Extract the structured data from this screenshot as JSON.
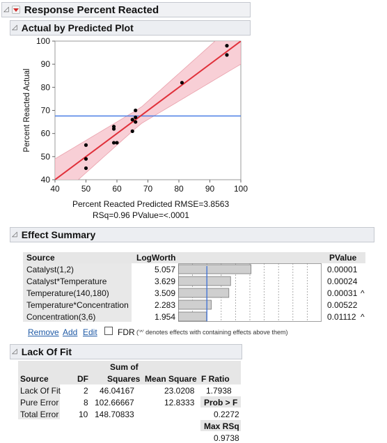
{
  "report": {
    "title": "Response Percent Reacted"
  },
  "actual_by_predicted": {
    "title": "Actual by Predicted Plot",
    "xlabel": "Percent Reacted Predicted RMSE=3.8563",
    "stats": "RSq=0.96 PValue=<.0001",
    "ylabel": "Percent Reacted Actual"
  },
  "chart_data": {
    "type": "scatter",
    "title": "Actual by Predicted Plot",
    "xlabel": "Percent Reacted Predicted RMSE=3.8563",
    "ylabel": "Percent Reacted Actual",
    "xlim": [
      40,
      100
    ],
    "ylim": [
      40,
      100
    ],
    "xticks": [
      40,
      50,
      60,
      70,
      80,
      90,
      100
    ],
    "yticks": [
      40,
      50,
      60,
      70,
      80,
      90,
      100
    ],
    "mean_line": 67.6,
    "fit_line": [
      [
        40,
        40
      ],
      [
        100,
        100
      ]
    ],
    "points": [
      [
        50,
        55
      ],
      [
        50,
        49
      ],
      [
        50,
        45
      ],
      [
        59,
        63
      ],
      [
        59,
        62
      ],
      [
        59,
        56
      ],
      [
        60,
        56
      ],
      [
        65,
        66
      ],
      [
        65,
        61
      ],
      [
        66,
        65
      ],
      [
        66,
        67
      ],
      [
        66,
        70
      ],
      [
        81,
        82
      ],
      [
        95.5,
        98
      ],
      [
        95.5,
        94
      ]
    ],
    "colors": {
      "fit": "#e0303a",
      "band": "#f7c7cf",
      "mean": "#4a7ee6",
      "points": "#000000"
    }
  },
  "effect_summary": {
    "title": "Effect Summary",
    "headers": {
      "source": "Source",
      "logworth": "LogWorth",
      "pvalue": "PValue"
    },
    "rows": [
      {
        "source": "Catalyst(1,2)",
        "logworth": "5.057",
        "pvalue": "0.00001",
        "mark": "",
        "value": 5.057
      },
      {
        "source": "Catalyst*Temperature",
        "logworth": "3.629",
        "pvalue": "0.00024",
        "mark": "",
        "value": 3.629
      },
      {
        "source": "Temperature(140,180)",
        "logworth": "3.509",
        "pvalue": "0.00031",
        "mark": "^",
        "value": 3.509
      },
      {
        "source": "Temperature*Concentration",
        "logworth": "2.283",
        "pvalue": "0.00522",
        "mark": "",
        "value": 2.283
      },
      {
        "source": "Concentration(3,6)",
        "logworth": "1.954",
        "pvalue": "0.01112",
        "mark": "^",
        "value": 1.954
      }
    ],
    "bar_max": 10,
    "actions": {
      "remove": "Remove",
      "add": "Add",
      "edit": "Edit",
      "fdr": "FDR"
    },
    "note": "('^' denotes effects with containing effects above them)"
  },
  "lack_of_fit": {
    "title": "Lack Of Fit",
    "headers": {
      "source": "Source",
      "df": "DF",
      "ss_top": "Sum of",
      "ss_bottom": "Squares",
      "ms": "Mean Square",
      "f": "F Ratio"
    },
    "rows": [
      {
        "source": "Lack Of Fit",
        "df": "2",
        "ss": "46.04167",
        "ms": "23.0208",
        "f": "1.7938"
      },
      {
        "source": "Pure Error",
        "df": "8",
        "ss": "102.66667",
        "ms": "12.8333",
        "f": "Prob > F"
      },
      {
        "source": "Total Error",
        "df": "10",
        "ss": "148.70833",
        "ms": "",
        "f": "0.2272"
      }
    ],
    "max_rsq_label": "Max RSq",
    "max_rsq_value": "0.9738"
  }
}
